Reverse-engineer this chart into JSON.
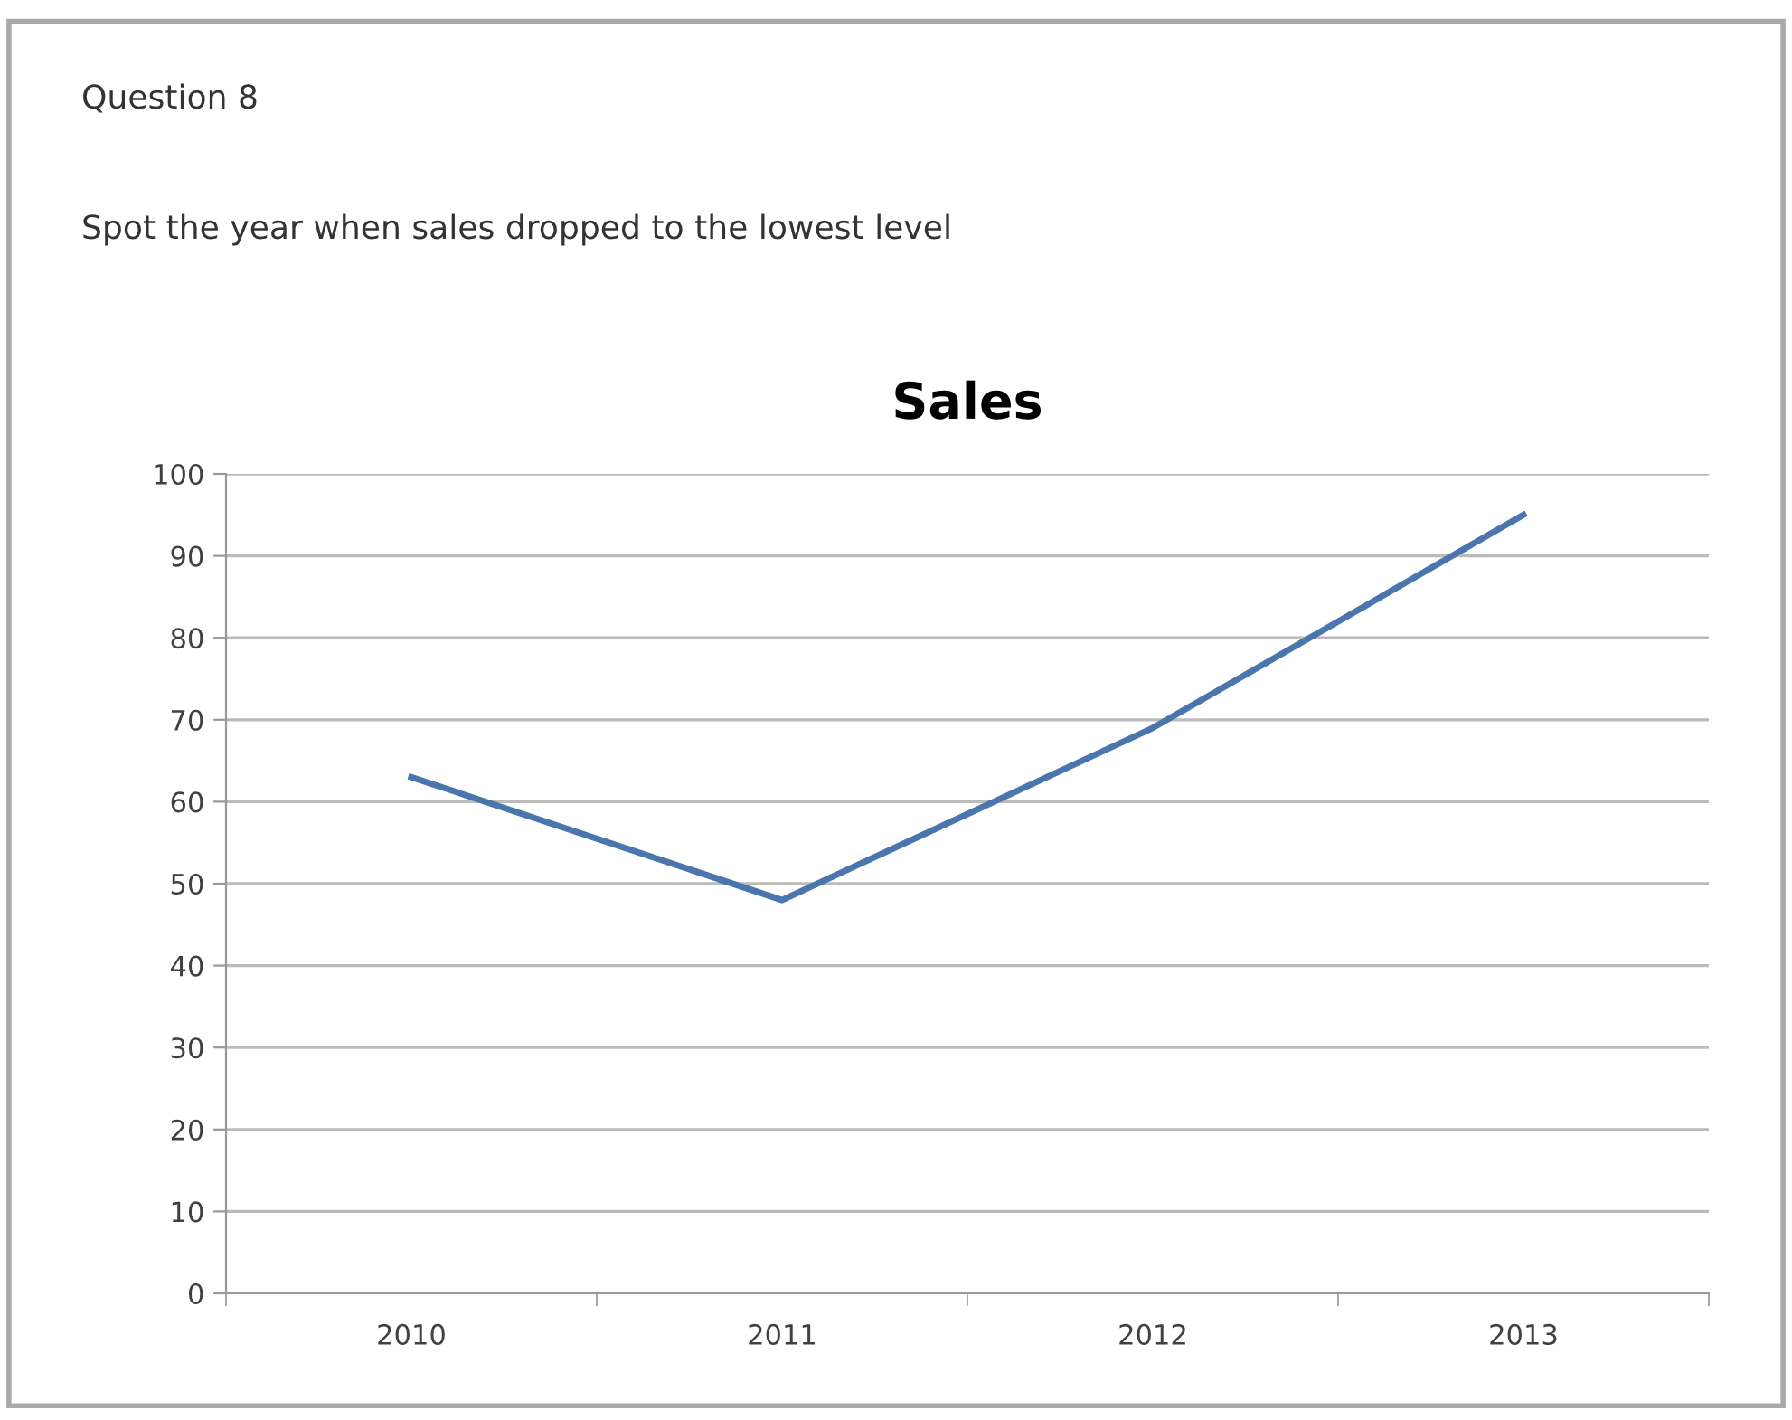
{
  "chart_data": {
    "type": "line",
    "title": "Sales",
    "annotations": [
      "Question 8",
      "Spot the year when sales dropped to the lowest level"
    ],
    "categories": [
      "2010",
      "2011",
      "2012",
      "2013"
    ],
    "series": [
      {
        "color": "#4a76ad",
        "values": [
          63,
          48,
          69,
          95
        ]
      }
    ],
    "ylim": [
      0,
      100
    ],
    "yticks": [
      0,
      10,
      20,
      30,
      40,
      50,
      60,
      70,
      80,
      90,
      100
    ],
    "grid": "y",
    "legend": false,
    "marker": "none",
    "line_style": "solid"
  }
}
